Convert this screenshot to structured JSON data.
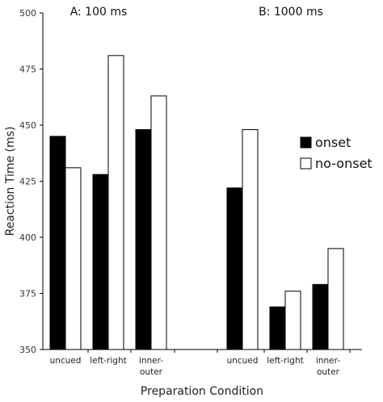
{
  "chart_data": {
    "type": "bar",
    "xlabel": "Preparation Condition",
    "ylabel": "Reaction Time (ms)",
    "ylim": [
      350,
      500
    ],
    "yticks": [
      350,
      375,
      400,
      425,
      450,
      475,
      500
    ],
    "grid": false,
    "legend_position": "right",
    "series_names": [
      "onset",
      "no-onset"
    ],
    "series_colors": [
      "#000000",
      "#ffffff"
    ],
    "panels": [
      {
        "label": "A: 100 ms",
        "categories": [
          [
            "uncued"
          ],
          [
            "left-right"
          ],
          [
            "inner-",
            "outer"
          ]
        ],
        "series": [
          {
            "name": "onset",
            "values": [
              445,
              428,
              448
            ]
          },
          {
            "name": "no-onset",
            "values": [
              431,
              481,
              463
            ]
          }
        ]
      },
      {
        "label": "B: 1000 ms",
        "categories": [
          [
            "uncued"
          ],
          [
            "left-right"
          ],
          [
            "inner-",
            "outer"
          ]
        ],
        "series": [
          {
            "name": "onset",
            "values": [
              422,
              369,
              379
            ]
          },
          {
            "name": "no-onset",
            "values": [
              448,
              376,
              395
            ]
          }
        ]
      }
    ]
  }
}
